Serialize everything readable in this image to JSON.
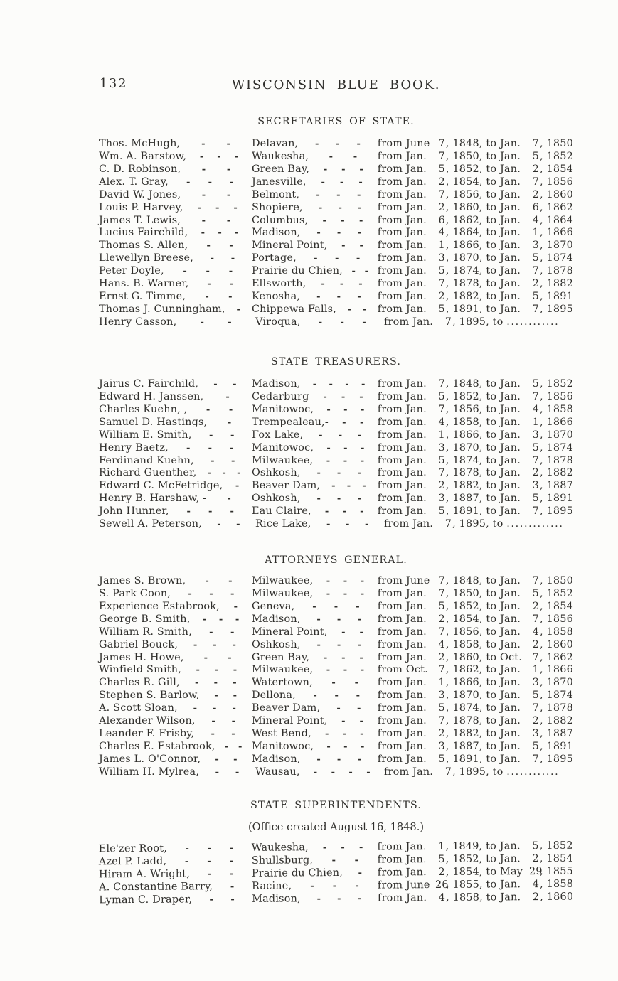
{
  "colors": {
    "paper": "#fcfcfa",
    "ink": "#2f2e2b"
  },
  "page": {
    "number": "132",
    "title": "WISCONSIN BLUE BOOK."
  },
  "term_labels": {
    "from": "from",
    "to": "to"
  },
  "sections": [
    {
      "id": "secretaries-of-state",
      "title": "SECRETARIES OF STATE.",
      "rows": [
        {
          "name": "Thos. McHugh,",
          "nd": 2,
          "city": "Delavan,",
          "cd": 3,
          "fm": "June",
          "fd": "7",
          "fy": "1848",
          "tm": "Jan.",
          "td": "7",
          "ty": "1850"
        },
        {
          "name": "Wm. A. Barstow,",
          "nd": 3,
          "city": "Waukesha,",
          "cd": 2,
          "fm": "Jan.",
          "fd": "7",
          "fy": "1850",
          "tm": "Jan.",
          "td": "5",
          "ty": "1852"
        },
        {
          "name": "C. D. Robinson,",
          "nd": 2,
          "city": "Green Bay,",
          "cd": 3,
          "fm": "Jan.",
          "fd": "5",
          "fy": "1852",
          "tm": "Jan.",
          "td": "2",
          "ty": "1854"
        },
        {
          "name": "Alex. T. Gray,",
          "nd": 3,
          "city": "Janesville,",
          "cd": 3,
          "fm": "Jan.",
          "fd": "2",
          "fy": "1854",
          "tm": "Jan.",
          "td": "7",
          "ty": "1856"
        },
        {
          "name": "David W. Jones,",
          "nd": 2,
          "city": "Belmont,",
          "cd": 3,
          "fm": "Jan.",
          "fd": "7",
          "fy": "1856",
          "tm": "Jan.",
          "td": "2",
          "ty": "1860"
        },
        {
          "name": "Louis P. Harvey,",
          "nd": 3,
          "city": "Shopiere,",
          "cd": 3,
          "fm": "Jan.",
          "fd": "2",
          "fy": "1860",
          "tm": "Jan.",
          "td": "6",
          "ty": "1862"
        },
        {
          "name": "James T. Lewis,",
          "nd": 2,
          "city": "Columbus,",
          "cd": 3,
          "fm": "Jan.",
          "fd": "6",
          "fy": "1862",
          "tm": "Jan.",
          "td": "4",
          "ty": "1864"
        },
        {
          "name": "Lucius Fairchild,",
          "nd": 3,
          "city": "Madison,",
          "cd": 3,
          "fm": "Jan.",
          "fd": "4",
          "fy": "1864",
          "tm": "Jan.",
          "td": "1",
          "ty": "1866"
        },
        {
          "name": "Thomas S. Allen,",
          "nd": 2,
          "city": "Mineral Point,",
          "cd": 2,
          "fm": "Jan.",
          "fd": "1",
          "fy": "1866",
          "tm": "Jan.",
          "td": "3",
          "ty": "1870"
        },
        {
          "name": "Llewellyn Breese,",
          "nd": 2,
          "city": "Portage,",
          "cd": 3,
          "fm": "Jan.",
          "fd": "3",
          "fy": "1870",
          "tm": "Jan.",
          "td": "5",
          "ty": "1874"
        },
        {
          "name": "Peter Doyle,",
          "nd": 3,
          "city": "Prairie du Chien,",
          "cd": 2,
          "fm": "Jan.",
          "fd": "5",
          "fy": "1874",
          "tm": "Jan.",
          "td": "7",
          "ty": "1878"
        },
        {
          "name": "Hans. B. Warner,",
          "nd": 2,
          "city": "Ellsworth,",
          "cd": 3,
          "fm": "Jan.",
          "fd": "7",
          "fy": "1878",
          "tm": "Jan.",
          "td": "2",
          "ty": "1882"
        },
        {
          "name": "Ernst G. Timme,",
          "nd": 2,
          "city": "Kenosha,",
          "cd": 3,
          "fm": "Jan.",
          "fd": "2",
          "fy": "1882",
          "tm": "Jan.",
          "td": "5",
          "ty": "1891"
        },
        {
          "name": "Thomas J. Cunningham,",
          "nd": 1,
          "city": "Chippewa Falls,",
          "cd": 2,
          "fm": "Jan.",
          "fd": "5",
          "fy": "1891",
          "tm": "Jan.",
          "td": "7",
          "ty": "1895"
        },
        {
          "name": "Henry Casson,",
          "nd": 2,
          "city": "Viroqua,",
          "cd": 3,
          "fm": "Jan.",
          "fd": "7",
          "fy": "1895",
          "dots": "............"
        }
      ]
    },
    {
      "id": "state-treasurers",
      "title": "STATE TREASURERS.",
      "rows": [
        {
          "name": "Jairus C. Fairchild,",
          "nd": 2,
          "city": "Madison,",
          "cd": 4,
          "fm": "Jan.",
          "fd": "7",
          "fy": "1848",
          "tm": "Jan.",
          "td": "5",
          "ty": "1852"
        },
        {
          "name": "Edward H. Janssen,",
          "nd": 1,
          "city": "Cedarburg",
          "cd": 3,
          "fm": "Jan.",
          "fd": "5",
          "fy": "1852",
          "tm": "Jan.",
          "td": "7",
          "ty": "1856"
        },
        {
          "name": "Charles Kuehn, ,",
          "nd": 2,
          "city": "Manitowoc,",
          "cd": 3,
          "fm": "Jan.",
          "fd": "7",
          "fy": "1856",
          "tm": "Jan.",
          "td": "4",
          "ty": "1858"
        },
        {
          "name": "Samuel D. Hastings,",
          "nd": 1,
          "city": "Trempealeau,-",
          "cd": 2,
          "fm": "Jan.",
          "fd": "4",
          "fy": "1858",
          "tm": "Jan.",
          "td": "1",
          "ty": "1866"
        },
        {
          "name": "William E. Smith,",
          "nd": 2,
          "city": "Fox Lake,",
          "cd": 3,
          "fm": "Jan.",
          "fd": "1",
          "fy": "1866",
          "tm": "Jan.",
          "td": "3",
          "ty": "1870"
        },
        {
          "name": "Henry Baetz,",
          "nd": 3,
          "city": "Manitowoc,",
          "cd": 3,
          "fm": "Jan.",
          "fd": "3",
          "fy": "1870",
          "tm": "Jan.",
          "td": "5",
          "ty": "1874"
        },
        {
          "name": "Ferdinand Kuehn,",
          "nd": 2,
          "city": "Milwaukee,",
          "cd": 3,
          "fm": "Jan.",
          "fd": "5",
          "fy": "1874",
          "tm": "Jan.",
          "td": "7",
          "ty": "1878"
        },
        {
          "name": "Richard Guenther,",
          "nd": 3,
          "city": "Oshkosh,",
          "cd": 3,
          "fm": "Jan.",
          "fd": "7",
          "fy": "1878",
          "tm": "Jan.",
          "td": "2",
          "ty": "1882"
        },
        {
          "name": "Edward C. McFetridge,",
          "nd": 1,
          "city": "Beaver Dam,",
          "cd": 3,
          "fm": "Jan.",
          "fd": "2",
          "fy": "1882",
          "tm": "Jan.",
          "td": "3",
          "ty": "1887"
        },
        {
          "name": "Henry B. Harshaw, -",
          "nd": 1,
          "city": "Oshkosh,",
          "cd": 3,
          "fm": "Jan.",
          "fd": "3",
          "fy": "1887",
          "tm": "Jan.",
          "td": "5",
          "ty": "1891"
        },
        {
          "name": "John Hunner,",
          "nd": 3,
          "city": "Eau Claire,",
          "cd": 3,
          "fm": "Jan.",
          "fd": "5",
          "fy": "1891",
          "tm": "Jan.",
          "td": "7",
          "ty": "1895"
        },
        {
          "name": "Sewell A. Peterson,",
          "nd": 2,
          "city": "Rice Lake,",
          "cd": 3,
          "fm": "Jan.",
          "fd": "7",
          "fy": "1895",
          "dots": "............."
        }
      ]
    },
    {
      "id": "attorneys-general",
      "title": "ATTORNEYS GENERAL.",
      "rows": [
        {
          "name": "James S. Brown,",
          "nd": 2,
          "city": "Milwaukee,",
          "cd": 3,
          "fm": "June",
          "fd": "7",
          "fy": "1848",
          "tm": "Jan.",
          "td": "7",
          "ty": "1850"
        },
        {
          "name": "S. Park Coon,",
          "nd": 3,
          "city": "Milwaukee,",
          "cd": 3,
          "fm": "Jan.",
          "fd": "7",
          "fy": "1850",
          "tm": "Jan.",
          "td": "5",
          "ty": "1852"
        },
        {
          "name": "Experience Estabrook,",
          "nd": 1,
          "city": "Geneva,",
          "cd": 3,
          "fm": "Jan.",
          "fd": "5",
          "fy": "1852",
          "tm": "Jan.",
          "td": "2",
          "ty": "1854"
        },
        {
          "name": "George B. Smith,",
          "nd": 3,
          "city": "Madison,",
          "cd": 3,
          "fm": "Jan.",
          "fd": "2",
          "fy": "1854",
          "tm": "Jan.",
          "td": "7",
          "ty": "1856"
        },
        {
          "name": "William R. Smith,",
          "nd": 2,
          "city": "Mineral Point,",
          "cd": 2,
          "fm": "Jan.",
          "fd": "7",
          "fy": "1856",
          "tm": "Jan.",
          "td": "4",
          "ty": "1858"
        },
        {
          "name": "Gabriel Bouck,",
          "nd": 3,
          "city": "Oshkosh,",
          "cd": 3,
          "fm": "Jan.",
          "fd": "4",
          "fy": "1858",
          "tm": "Jan.",
          "td": "2",
          "ty": "1860"
        },
        {
          "name": "James H. Howe,",
          "nd": 2,
          "city": "Green Bay,",
          "cd": 3,
          "fm": "Jan.",
          "fd": "2",
          "fy": "1860",
          "tm": "Oct.",
          "td": "7",
          "ty": "1862"
        },
        {
          "name": "Winfield Smith,",
          "nd": 3,
          "city": "Milwaukee,",
          "cd": 3,
          "fm": "Oct.",
          "fd": "7",
          "fy": "1862",
          "tm": "Jan.",
          "td": "1",
          "ty": "1866"
        },
        {
          "name": "Charles R. Gill,",
          "nd": 3,
          "city": "Watertown,",
          "cd": 2,
          "fm": "Jan.",
          "fd": "1",
          "fy": "1866",
          "tm": "Jan.",
          "td": "3",
          "ty": "1870"
        },
        {
          "name": "Stephen S. Barlow,",
          "nd": 2,
          "city": "Dellona,",
          "cd": 3,
          "fm": "Jan.",
          "fd": "3",
          "fy": "1870",
          "tm": "Jan.",
          "td": "5",
          "ty": "1874"
        },
        {
          "name": "A. Scott Sloan,",
          "nd": 3,
          "city": "Beaver Dam,",
          "cd": 2,
          "fm": "Jan.",
          "fd": "5",
          "fy": "1874",
          "tm": "Jan.",
          "td": "7",
          "ty": "1878"
        },
        {
          "name": "Alexander Wilson,",
          "nd": 2,
          "city": "Mineral Point,",
          "cd": 2,
          "fm": "Jan.",
          "fd": "7",
          "fy": "1878",
          "tm": "Jan.",
          "td": "2",
          "ty": "1882"
        },
        {
          "name": "Leander F. Frisby,",
          "nd": 2,
          "city": "West Bend,",
          "cd": 3,
          "fm": "Jan.",
          "fd": "2",
          "fy": "1882",
          "tm": "Jan.",
          "td": "3",
          "ty": "1887"
        },
        {
          "name": "Charles E. Estabrook,",
          "nd": 2,
          "city": "Manitowoc,",
          "cd": 3,
          "fm": "Jan.",
          "fd": "3",
          "fy": "1887",
          "tm": "Jan.",
          "td": "5",
          "ty": "1891"
        },
        {
          "name": "James L. O'Connor,",
          "nd": 2,
          "city": "Madison,",
          "cd": 3,
          "fm": "Jan.",
          "fd": "5",
          "fy": "1891",
          "tm": "Jan.",
          "td": "7",
          "ty": "1895"
        },
        {
          "name": "William H. Mylrea,",
          "nd": 2,
          "city": "Wausau,",
          "cd": 4,
          "fm": "Jan.",
          "fd": "7",
          "fy": "1895",
          "dots": "............"
        }
      ]
    },
    {
      "id": "state-superintendents",
      "title": "STATE SUPERINTENDENTS.",
      "note": "(Office created August 16, 1848.)",
      "rows": [
        {
          "name": "Ele'zer Root,",
          "nd": 3,
          "city": "Waukesha,",
          "cd": 3,
          "fm": "Jan.",
          "fd": "1",
          "fy": "1849",
          "tm": "Jan.",
          "td": "5",
          "ty": "1852"
        },
        {
          "name": "Azel P. Ladd,",
          "nd": 3,
          "city": "Shullsburg,",
          "cd": 2,
          "fm": "Jan.",
          "fd": "5",
          "fy": "1852",
          "tm": "Jan.",
          "td": "2",
          "ty": "1854"
        },
        {
          "name": "Hiram A. Wright,",
          "nd": 2,
          "city": "Prairie du Chien,",
          "cd": 1,
          "fm": "Jan.",
          "fd": "2",
          "fy": "1854",
          "tm": "May",
          "td": "29",
          "ty": "1855"
        },
        {
          "name": "A. Constantine Barry,",
          "nd": 1,
          "city": "Racine,",
          "cd": 3,
          "fm": "June",
          "fd": "26",
          "fy": "1855",
          "tm": "Jan.",
          "td": "4",
          "ty": "1858"
        },
        {
          "name": "Lyman C. Draper,",
          "nd": 2,
          "city": "Madison,",
          "cd": 3,
          "fm": "Jan.",
          "fd": "4",
          "fy": "1858",
          "tm": "Jan.",
          "td": "2",
          "ty": "1860"
        }
      ]
    }
  ]
}
